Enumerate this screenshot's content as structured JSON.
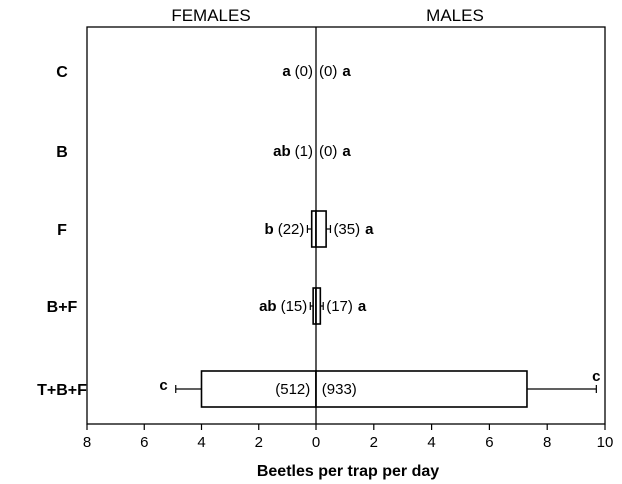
{
  "chart_data": {
    "type": "boxplot",
    "panels": {
      "left": "FEMALES",
      "right": "MALES"
    },
    "xlabel": "Beetles per trap per day",
    "x_left_range": [
      0,
      8
    ],
    "x_right_range": [
      0,
      10
    ],
    "x_ticks_left": [
      "8",
      "6",
      "4",
      "2",
      "0"
    ],
    "x_ticks_right": [
      "2",
      "4",
      "6",
      "8",
      "10"
    ],
    "categories": [
      "C",
      "B",
      "F",
      "B+F",
      "T+B+F"
    ],
    "females": [
      {
        "category": "C",
        "letter": "a",
        "n": "(0)",
        "q1": 0,
        "q3": 0,
        "median": 0,
        "whisker_low": 0,
        "whisker_high": 0
      },
      {
        "category": "B",
        "letter": "ab",
        "n": "(1)",
        "q1": 0,
        "q3": 0,
        "median": 0,
        "whisker_low": 0,
        "whisker_high": 0
      },
      {
        "category": "F",
        "letter": "b",
        "n": "(22)",
        "q1": 0,
        "q3": 0.15,
        "median": 0,
        "whisker_low": 0,
        "whisker_high": 0.3
      },
      {
        "category": "B+F",
        "letter": "ab",
        "n": "(15)",
        "q1": 0,
        "q3": 0.1,
        "median": 0,
        "whisker_low": 0,
        "whisker_high": 0.2
      },
      {
        "category": "T+B+F",
        "letter": "c",
        "n": "(512)",
        "q1": 0,
        "q3": 4.0,
        "median": 0,
        "whisker_low": 0,
        "whisker_high": 4.9
      }
    ],
    "males": [
      {
        "category": "C",
        "letter": "a",
        "n": "(0)",
        "q1": 0,
        "q3": 0,
        "median": 0,
        "whisker_low": 0,
        "whisker_high": 0
      },
      {
        "category": "B",
        "letter": "a",
        "n": "(0)",
        "q1": 0,
        "q3": 0,
        "median": 0,
        "whisker_low": 0,
        "whisker_high": 0
      },
      {
        "category": "F",
        "letter": "a",
        "n": "(35)",
        "q1": 0,
        "q3": 0.35,
        "median": 0,
        "whisker_low": 0,
        "whisker_high": 0.5
      },
      {
        "category": "B+F",
        "letter": "a",
        "n": "(17)",
        "q1": 0,
        "q3": 0.15,
        "median": 0,
        "whisker_low": 0,
        "whisker_high": 0.25
      },
      {
        "category": "T+B+F",
        "letter": "c",
        "n": "(933)",
        "q1": 0,
        "q3": 7.3,
        "median": 0,
        "whisker_low": 0,
        "whisker_high": 9.7
      }
    ]
  }
}
